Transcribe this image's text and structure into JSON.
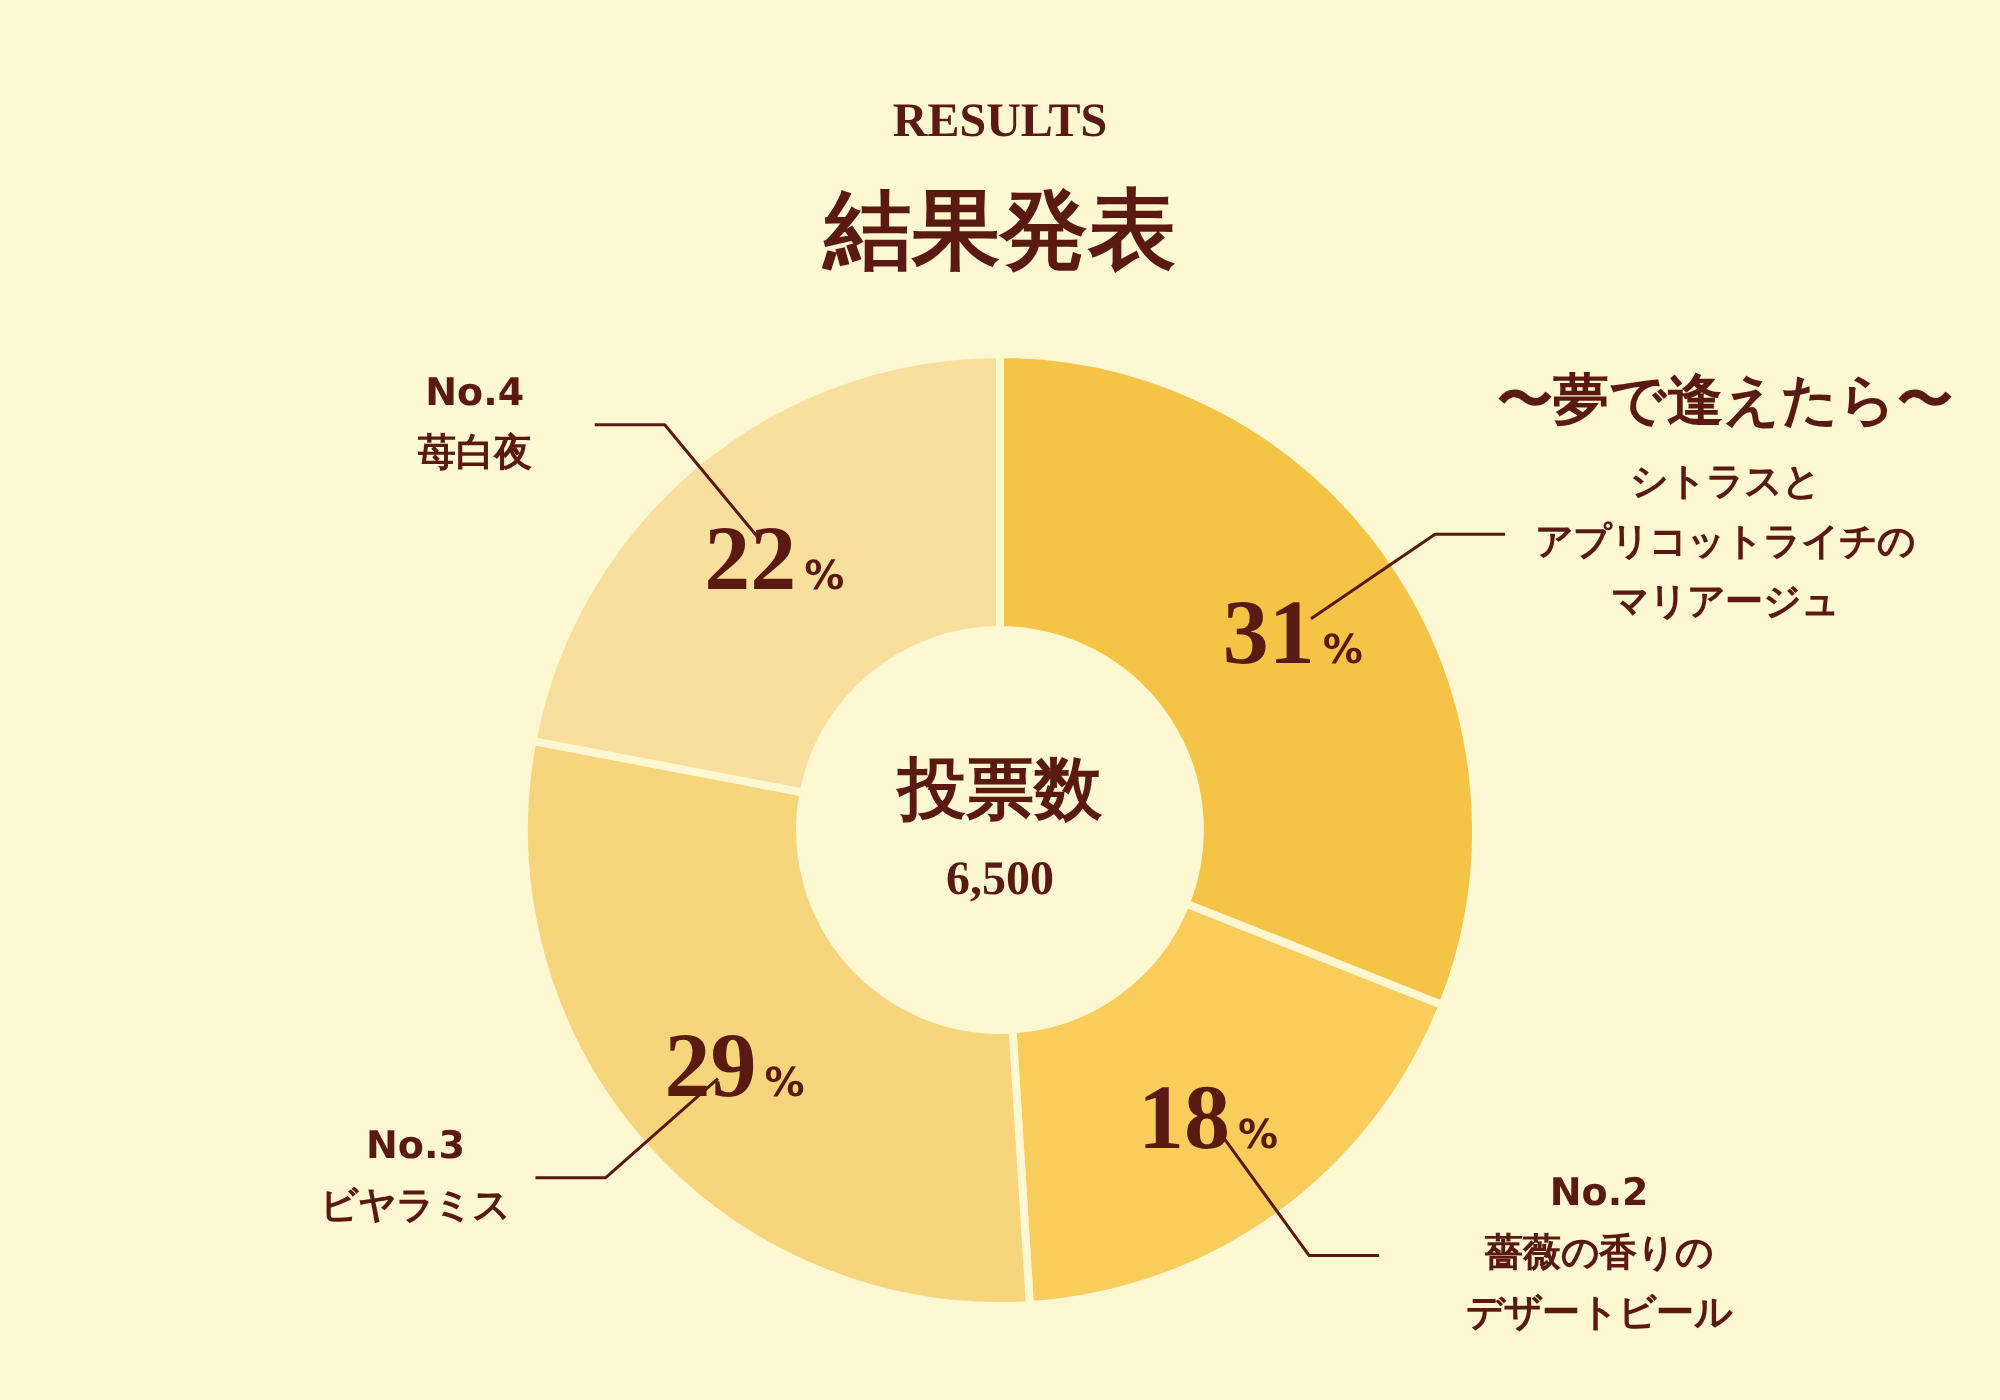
{
  "chart_data": {
    "type": "donut",
    "title": "RESULTS",
    "subtitle": "結果発表",
    "categories": [
      "〜夢で逢えたら〜シトラスとアプリコットライチのマリアージュ",
      "No.2\n薔薇の香りのデザートビール",
      "No.3\nビヤラミス",
      "No.4\n苺白夜"
    ],
    "values": [
      31,
      18,
      29,
      22
    ],
    "colors": [
      "#f5c447",
      "#f8cd5c",
      "#f7d57c",
      "#f9df9e"
    ],
    "value_labels": [
      "31%",
      "18%",
      "29%",
      "22%"
    ],
    "annotations": [
      "投票数",
      "6,500"
    ],
    "legend": false
  }
}
